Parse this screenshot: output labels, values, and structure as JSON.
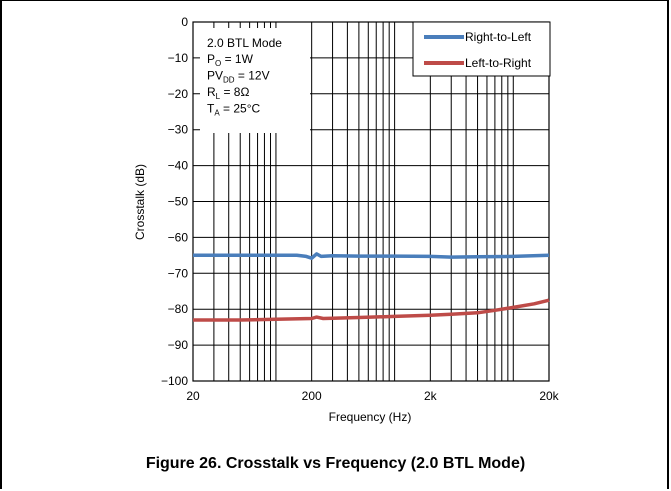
{
  "caption": "Figure 26. Crosstalk vs Frequency (2.0 BTL Mode)",
  "chart_data": {
    "type": "line",
    "xlabel": "Frequency (Hz)",
    "ylabel": "Crosstalk (dB)",
    "xscale": "log",
    "xlim": [
      20,
      20000
    ],
    "ylim": [
      -100,
      0
    ],
    "x_ticks": [
      20,
      200,
      2000,
      20000
    ],
    "x_tick_labels": [
      "20",
      "200",
      "2k",
      "20k"
    ],
    "y_ticks": [
      0,
      -10,
      -20,
      -30,
      -40,
      -50,
      -60,
      -70,
      -80,
      -90,
      -100
    ],
    "y_tick_labels": [
      "0",
      "−10",
      "−20",
      "−30",
      "−40",
      "−50",
      "−60",
      "−70",
      "−80",
      "−90",
      "−100"
    ],
    "grid": true,
    "legend_position": "top-right",
    "annotation": {
      "mode": "2.0 BTL Mode",
      "lines": [
        {
          "main": "P",
          "sub": "O",
          "rest": " = 1W"
        },
        {
          "main": "PV",
          "sub": "DD",
          "rest": " = 12V"
        },
        {
          "main": "R",
          "sub": "L",
          "rest": " = 8Ω"
        },
        {
          "main": "T",
          "sub": "A",
          "rest": " = 25°C"
        }
      ]
    },
    "series": [
      {
        "name": "Right-to-Left",
        "color": "#4a7ebb",
        "points": [
          [
            20,
            -65
          ],
          [
            50,
            -65
          ],
          [
            100,
            -65
          ],
          [
            150,
            -65
          ],
          [
            180,
            -65.3
          ],
          [
            200,
            -65.8
          ],
          [
            220,
            -64.6
          ],
          [
            240,
            -65.3
          ],
          [
            300,
            -65.1
          ],
          [
            500,
            -65.2
          ],
          [
            1000,
            -65.2
          ],
          [
            2000,
            -65.3
          ],
          [
            3000,
            -65.5
          ],
          [
            5000,
            -65.4
          ],
          [
            10000,
            -65.3
          ],
          [
            20000,
            -65
          ]
        ]
      },
      {
        "name": "Left-to-Right",
        "color": "#be4b48",
        "points": [
          [
            20,
            -83
          ],
          [
            50,
            -83
          ],
          [
            100,
            -82.8
          ],
          [
            200,
            -82.6
          ],
          [
            220,
            -82.2
          ],
          [
            250,
            -82.6
          ],
          [
            300,
            -82.5
          ],
          [
            500,
            -82.3
          ],
          [
            1000,
            -82
          ],
          [
            2000,
            -81.7
          ],
          [
            3000,
            -81.4
          ],
          [
            5000,
            -81
          ],
          [
            7000,
            -80.3
          ],
          [
            10000,
            -79.5
          ],
          [
            15000,
            -78.5
          ],
          [
            20000,
            -77.5
          ]
        ]
      }
    ]
  }
}
